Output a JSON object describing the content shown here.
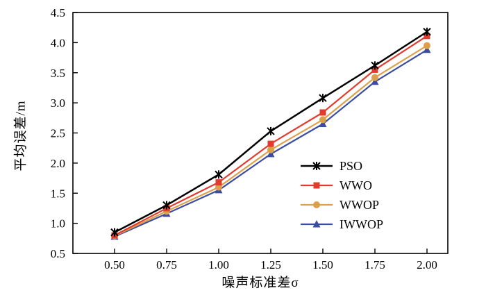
{
  "chart_data": {
    "type": "line",
    "title": "",
    "xlabel": "噪声标准差σ",
    "ylabel": "平均误差/m",
    "x": [
      0.5,
      0.75,
      1.0,
      1.25,
      1.5,
      1.75,
      2.0
    ],
    "series": [
      {
        "name": "PSO",
        "color": "#000000",
        "marker": "asterisk",
        "line_width": 2.5,
        "values": [
          0.85,
          1.3,
          1.81,
          2.53,
          3.08,
          3.62,
          4.18
        ]
      },
      {
        "name": "WWO",
        "color": "#e23b2e",
        "marker": "square",
        "line_width": 2.2,
        "values": [
          0.8,
          1.25,
          1.68,
          2.32,
          2.84,
          3.55,
          4.11
        ]
      },
      {
        "name": "WWOP",
        "color": "#dda04a",
        "marker": "circle",
        "line_width": 2.2,
        "values": [
          0.79,
          1.2,
          1.6,
          2.22,
          2.72,
          3.42,
          3.95
        ]
      },
      {
        "name": "IWWOP",
        "color": "#3c4da1",
        "marker": "triangle",
        "line_width": 2.2,
        "values": [
          0.78,
          1.16,
          1.55,
          2.15,
          2.65,
          3.35,
          3.88
        ]
      }
    ],
    "xlim": [
      0.3,
      2.1
    ],
    "ylim": [
      0.5,
      4.5
    ],
    "xticks": [
      "0.50",
      "0.75",
      "1.00",
      "1.25",
      "1.50",
      "1.75",
      "2.00"
    ],
    "xtick_values": [
      0.5,
      0.75,
      1.0,
      1.25,
      1.5,
      1.75,
      2.0
    ],
    "yticks": [
      "0.5",
      "1.0",
      "1.5",
      "2.0",
      "2.5",
      "3.0",
      "3.5",
      "4.0",
      "4.5"
    ],
    "ytick_values": [
      0.5,
      1.0,
      1.5,
      2.0,
      2.5,
      3.0,
      3.5,
      4.0,
      4.5
    ],
    "grid": false,
    "legend_position": "inside-right-lower",
    "axis_color": "#000000",
    "background_color": "#ffffff"
  }
}
